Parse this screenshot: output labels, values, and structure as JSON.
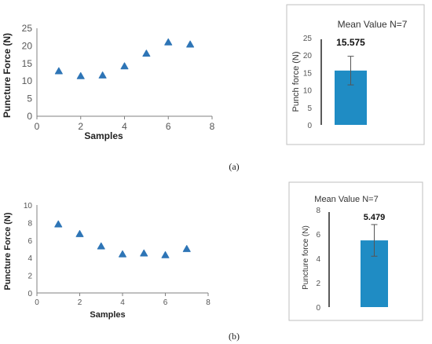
{
  "panels": {
    "a": "(a)",
    "b": "(b)"
  },
  "colors": {
    "marker": "#2E75B6",
    "bar": "#1F8CC4",
    "axis": "#808080",
    "frame": "#BFBFBF"
  },
  "chart_data": [
    {
      "id": "scatter_a",
      "type": "scatter",
      "xlabel": "Samples",
      "ylabel": "Puncture Force (N)",
      "xlim": [
        0,
        8
      ],
      "ylim": [
        0,
        25
      ],
      "xticks": [
        0,
        2,
        4,
        6,
        8
      ],
      "yticks": [
        0,
        5,
        10,
        15,
        20,
        25
      ],
      "x": [
        1,
        2,
        3,
        4,
        5,
        6,
        7
      ],
      "y": [
        12.8,
        11.4,
        11.6,
        14.2,
        17.8,
        21.0,
        20.4
      ]
    },
    {
      "id": "bar_a",
      "type": "bar",
      "title": "Mean Value N=7",
      "ylabel": "Punch force (N)",
      "ylim": [
        0,
        25
      ],
      "yticks": [
        0,
        5,
        10,
        15,
        20,
        25
      ],
      "categories": [
        ""
      ],
      "values": [
        15.575
      ],
      "value_label": "15.575",
      "error": [
        4.1
      ]
    },
    {
      "id": "scatter_b",
      "type": "scatter",
      "xlabel": "Samples",
      "ylabel": "Puncture Force (N)",
      "xlim": [
        0,
        8
      ],
      "ylim": [
        0,
        10
      ],
      "xticks": [
        0,
        2,
        4,
        6,
        8
      ],
      "yticks": [
        0,
        2,
        4,
        6,
        8,
        10
      ],
      "x": [
        1,
        2,
        3,
        4,
        5,
        6,
        7
      ],
      "y": [
        7.8,
        6.7,
        5.3,
        4.4,
        4.5,
        4.3,
        5.0
      ]
    },
    {
      "id": "bar_b",
      "type": "bar",
      "title": "Mean Value N=7",
      "ylabel": "Puncture force (N)",
      "ylim": [
        0,
        8
      ],
      "yticks": [
        0,
        2,
        4,
        6,
        8
      ],
      "categories": [
        ""
      ],
      "values": [
        5.479
      ],
      "value_label": "5.479",
      "error": [
        1.3
      ]
    }
  ]
}
